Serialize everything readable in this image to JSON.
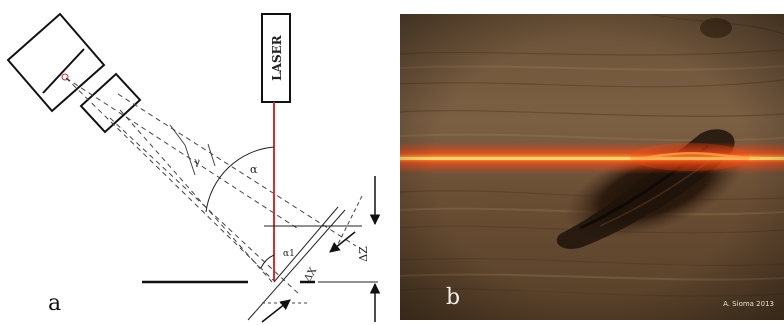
{
  "panel_a": {
    "label": "a",
    "laser_label": "LASER",
    "angle_alpha": "α",
    "angle_gamma": "γ",
    "angle_alpha1": "α1",
    "delta_z": "ΔZ",
    "delta_x": "ΔX",
    "laser_color": "#d43030"
  },
  "panel_b": {
    "label": "b",
    "credit": "A. Sioma 2013",
    "laser_color": "#ffa020"
  }
}
